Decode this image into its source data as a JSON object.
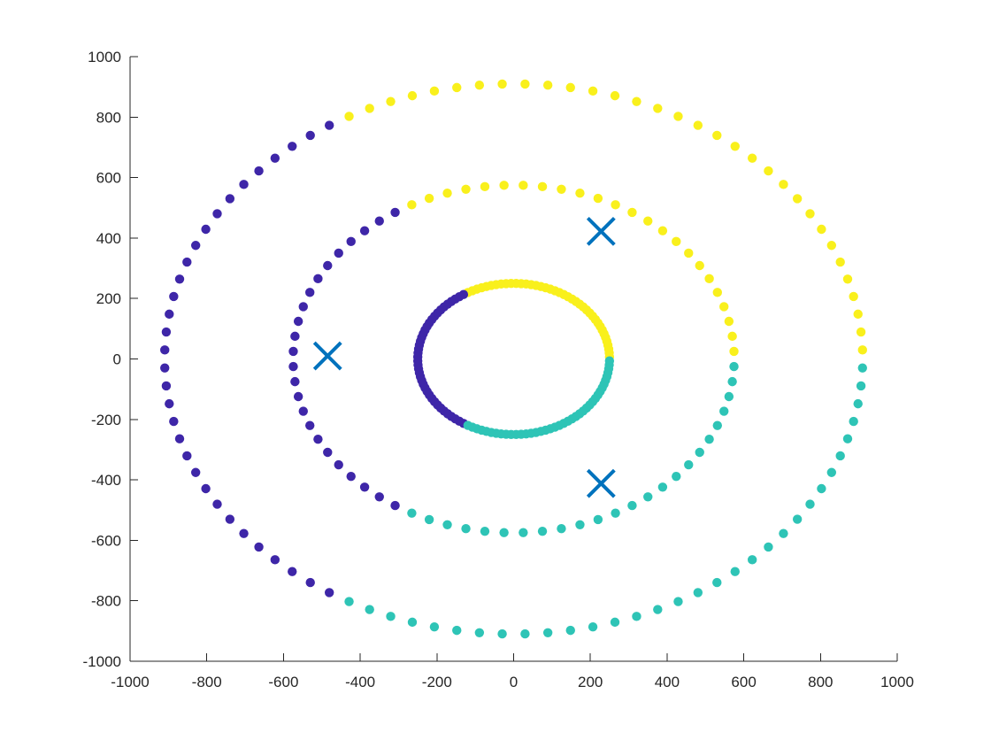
{
  "chart_data": {
    "type": "scatter",
    "title": "",
    "xlabel": "",
    "ylabel": "",
    "xlim": [
      -1000,
      1000
    ],
    "ylim": [
      -1000,
      1000
    ],
    "grid": false,
    "legend": "none",
    "xticks": [
      "-1000",
      "-800",
      "-600",
      "-400",
      "-200",
      "0",
      "200",
      "400",
      "600",
      "800",
      "1000"
    ],
    "yticks": [
      "-1000",
      "-800",
      "-600",
      "-400",
      "-200",
      "0",
      "200",
      "400",
      "600",
      "800",
      "1000"
    ],
    "colors": {
      "cluster_1": "#3e26a8",
      "cluster_2": "#2ec4b6",
      "cluster_3": "#f9f01c",
      "centroids": "#0072bd",
      "axes": "#262626"
    },
    "rings": [
      {
        "radius": 250,
        "n_points": 120
      },
      {
        "radius": 575,
        "n_points": 72
      },
      {
        "radius": 910,
        "n_points": 96
      }
    ],
    "cluster_boundaries_deg": {
      "cluster_3_from": 0,
      "cluster_3_to": 120,
      "cluster_1_from": 120,
      "cluster_1_to": 240,
      "cluster_2_from": 240,
      "cluster_2_to": 360
    },
    "centroids": [
      {
        "x": 228,
        "y": 422
      },
      {
        "x": -485,
        "y": 10
      },
      {
        "x": 228,
        "y": -412
      }
    ]
  }
}
